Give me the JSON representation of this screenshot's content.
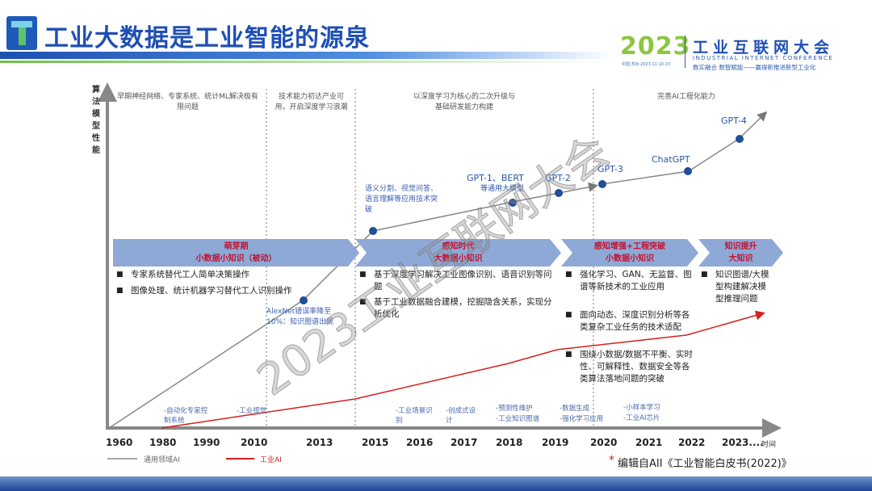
{
  "header": {
    "title": "工业大数据是工业智能的源泉",
    "conference": {
      "year": "2023",
      "dates": "中国·苏州 2023.11.10-13",
      "name": "工业互联网大会",
      "english": "INDUSTRIAL INTERNET CONFERENCE",
      "slogan": "数实融合 数智赋能——赢得新推进新型工业化"
    }
  },
  "diagram": {
    "y_axis_label": "算法模型性能",
    "x_axis_label": "时间",
    "x_ticks": [
      "1960",
      "1980",
      "1990",
      "2010",
      "2013",
      "2015",
      "2016",
      "2017",
      "2018",
      "2019",
      "2020",
      "2021",
      "2022",
      "2023...."
    ],
    "era_notes": [
      "早期神经网络、专家系统、统计ML解决极有限问题",
      "技术能力初达产业可用，开启深度学习浪潮",
      "以深度学习为核心的二次升级与基础研发能力构建",
      "完善AI工程化能力"
    ],
    "milestones": [
      {
        "label": "AlexNet错误率降至10%：知识图谱出现",
        "short": "Alexnet"
      },
      {
        "label": "语义分割、视觉问答、语言理解等应用技术突破"
      },
      {
        "label": "GPT-1、BERT",
        "sub": "等通用大模型"
      },
      {
        "label": "GPT-2"
      },
      {
        "label": "GPT-3"
      },
      {
        "label": "ChatGPT"
      },
      {
        "label": "GPT-4"
      }
    ],
    "phases": [
      {
        "title": "萌芽期",
        "subtitle": "小数据小知识（被动）",
        "bullets": [
          "专家系统替代工人简单决策操作",
          "图像处理、统计机器学习替代工人识别操作"
        ]
      },
      {
        "title": "感知时代",
        "subtitle": "大数据小知识",
        "bullets": [
          "基于深度学习解决工业图像识别、语音识别等问题",
          "基于工业数据融合建模，挖掘隐含关系，实现分析优化"
        ]
      },
      {
        "title": "感知增强+工程突破",
        "subtitle": "小数据小知识",
        "bullets": [
          "强化学习、GAN、无监督、图谱等新技术的工业应用",
          "面向动态、深度识别分析等各类复杂工业任务的技术适配",
          "围绕小数据/数据不平衡、实时性、可解释性、数据安全等各类算法落地问题的突破"
        ]
      },
      {
        "title": "知识提升",
        "subtitle": "大知识",
        "bullets": [
          "知识图谱/大模型构建解决模型推理问题"
        ]
      }
    ],
    "industrial_items": [
      "-自动化专家控制系统",
      "-工业视觉",
      "-工业场景识别",
      "-创成式设计",
      "-预测性维护",
      "-工业知识图谱",
      "-数据生成",
      "-强化学习应用",
      "-小样本学习",
      "-工业AI芯片"
    ],
    "legend": [
      {
        "label": "通用领域AI",
        "color": "#888888"
      },
      {
        "label": "工业AI",
        "color": "#d42020"
      }
    ],
    "performance_general_ai": [
      0,
      1.1,
      1.7,
      1.95,
      2.05,
      2.1,
      2.25,
      2.6
    ],
    "performance_industrial_ai": [
      0,
      0.25,
      0.55,
      0.67,
      0.8,
      0.95
    ]
  },
  "source_note": {
    "star": "*",
    "text": "编辑自AII《工业智能白皮书(2022)》"
  },
  "watermark": "2023工业互联网大会",
  "colors": {
    "brand_blue": "#1f4fb5",
    "accent_green": "#8cc63f",
    "industrial_red": "#d42020",
    "marker_blue": "#1f4e9a",
    "phase_fill": "#8ea9d6"
  }
}
